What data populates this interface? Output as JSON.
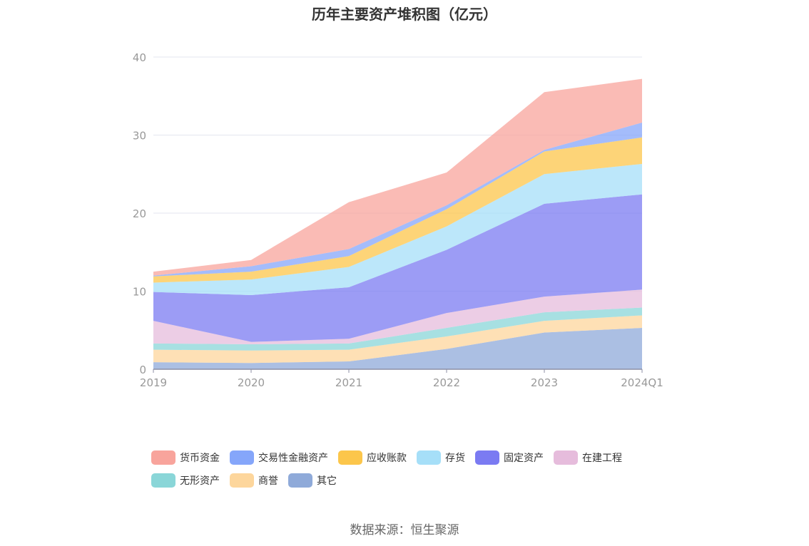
{
  "chart_data": {
    "type": "area",
    "stacked": true,
    "title": "历年主要资产堆积图（亿元）",
    "categories": [
      "2019",
      "2020",
      "2021",
      "2022",
      "2023",
      "2024Q1"
    ],
    "ylim": [
      0,
      40
    ],
    "yticks": [
      0,
      10,
      20,
      30,
      40
    ],
    "grid": true,
    "legend_position": "bottom",
    "series": [
      {
        "name": "其它",
        "color": "#8faad9",
        "values": [
          0.9,
          0.8,
          1.0,
          2.6,
          4.7,
          5.3
        ]
      },
      {
        "name": "商誉",
        "color": "#fdd69c",
        "values": [
          1.6,
          1.6,
          1.5,
          1.6,
          1.5,
          1.6
        ]
      },
      {
        "name": "无形资产",
        "color": "#8ad6d8",
        "values": [
          0.8,
          0.8,
          0.8,
          1.1,
          1.1,
          1.0
        ]
      },
      {
        "name": "在建工程",
        "color": "#e6bcdc",
        "values": [
          2.9,
          0.3,
          0.6,
          1.9,
          2.0,
          2.3
        ]
      },
      {
        "name": "固定资产",
        "color": "#7b7bf2",
        "values": [
          3.7,
          6.0,
          6.6,
          8.1,
          11.9,
          12.2
        ]
      },
      {
        "name": "存货",
        "color": "#a6dff8",
        "values": [
          1.2,
          2.0,
          2.6,
          3.0,
          3.8,
          3.9
        ]
      },
      {
        "name": "应收账款",
        "color": "#fcc64b",
        "values": [
          0.8,
          1.0,
          1.4,
          2.2,
          2.9,
          3.4
        ]
      },
      {
        "name": "交易性金融资产",
        "color": "#85a6fa",
        "values": [
          0.1,
          0.7,
          0.9,
          0.5,
          0.2,
          1.9
        ]
      },
      {
        "name": "货币资金",
        "color": "#f8a49c",
        "values": [
          0.5,
          0.8,
          6.0,
          4.2,
          7.4,
          5.6
        ]
      }
    ]
  },
  "source_text": "数据来源：恒生聚源"
}
